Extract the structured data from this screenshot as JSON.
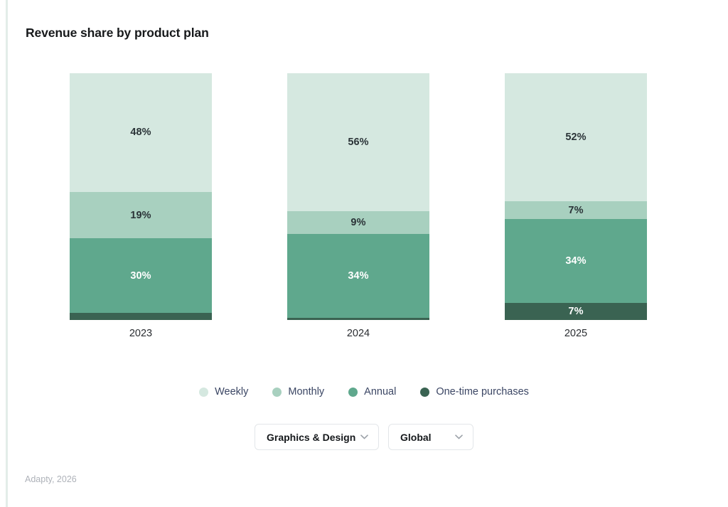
{
  "title": "Revenue share by product plan",
  "chart_data": {
    "type": "bar",
    "variant": "stacked-100",
    "unit": "%",
    "title": "Revenue share by product plan",
    "categories": [
      "2023",
      "2024",
      "2025"
    ],
    "stack_order": "top-to-bottom",
    "series": [
      {
        "name": "Weekly",
        "color": "#d5e8e0",
        "label_color": "#2b3438",
        "values": [
          48,
          56,
          52
        ],
        "labels": [
          "48%",
          "56%",
          "52%"
        ]
      },
      {
        "name": "Monthly",
        "color": "#a8d0bf",
        "label_color": "#2b3438",
        "values": [
          19,
          9,
          7
        ],
        "labels": [
          "19%",
          "9%",
          "7%"
        ]
      },
      {
        "name": "Annual",
        "color": "#5fa88d",
        "label_color": "#ffffff",
        "values": [
          30,
          34,
          34
        ],
        "labels": [
          "30%",
          "34%",
          "34%"
        ]
      },
      {
        "name": "One-time purchases",
        "color": "#3a6352",
        "label_color": "#ffffff",
        "values": [
          3,
          1,
          7
        ],
        "labels": [
          "",
          "",
          "7%"
        ]
      }
    ],
    "ylim": [
      0,
      100
    ],
    "grid": false,
    "axes_visible": false,
    "legend_position": "bottom"
  },
  "filters": {
    "category": "Graphics & Design",
    "region": "Global"
  },
  "footer": {
    "source": "Adapty, 2026"
  }
}
